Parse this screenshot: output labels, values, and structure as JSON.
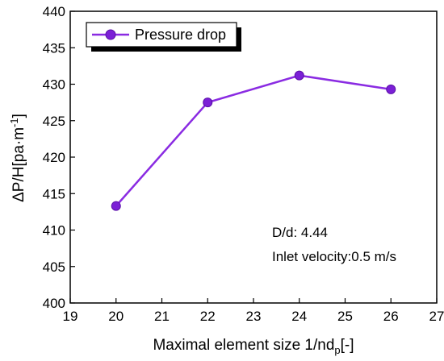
{
  "chart_data": {
    "type": "line",
    "x": [
      20,
      22,
      24,
      26
    ],
    "series": [
      {
        "name": "Pressure drop",
        "values": [
          413.3,
          427.5,
          431.2,
          429.3
        ]
      }
    ],
    "xlim": [
      19,
      27
    ],
    "ylim": [
      400,
      440
    ],
    "xticks": [
      19,
      20,
      21,
      22,
      23,
      24,
      25,
      26,
      27
    ],
    "yticks": [
      400,
      405,
      410,
      415,
      420,
      425,
      430,
      435,
      440
    ],
    "xlabel": "Maximal element size 1/nd",
    "xlabel_sub": "p",
    "xlabel_suffix": "[-]",
    "ylabel": "ΔP/H[pa·m",
    "ylabel_sup": "-1",
    "ylabel_suffix": "]",
    "annotations": [
      "D/d: 4.44",
      "Inlet velocity:0.5 m/s"
    ],
    "legend": "top-left",
    "grid": false,
    "colors": {
      "series": "#8a2be2",
      "marker_fill": "#7b1fd6",
      "axis": "#000000"
    }
  }
}
